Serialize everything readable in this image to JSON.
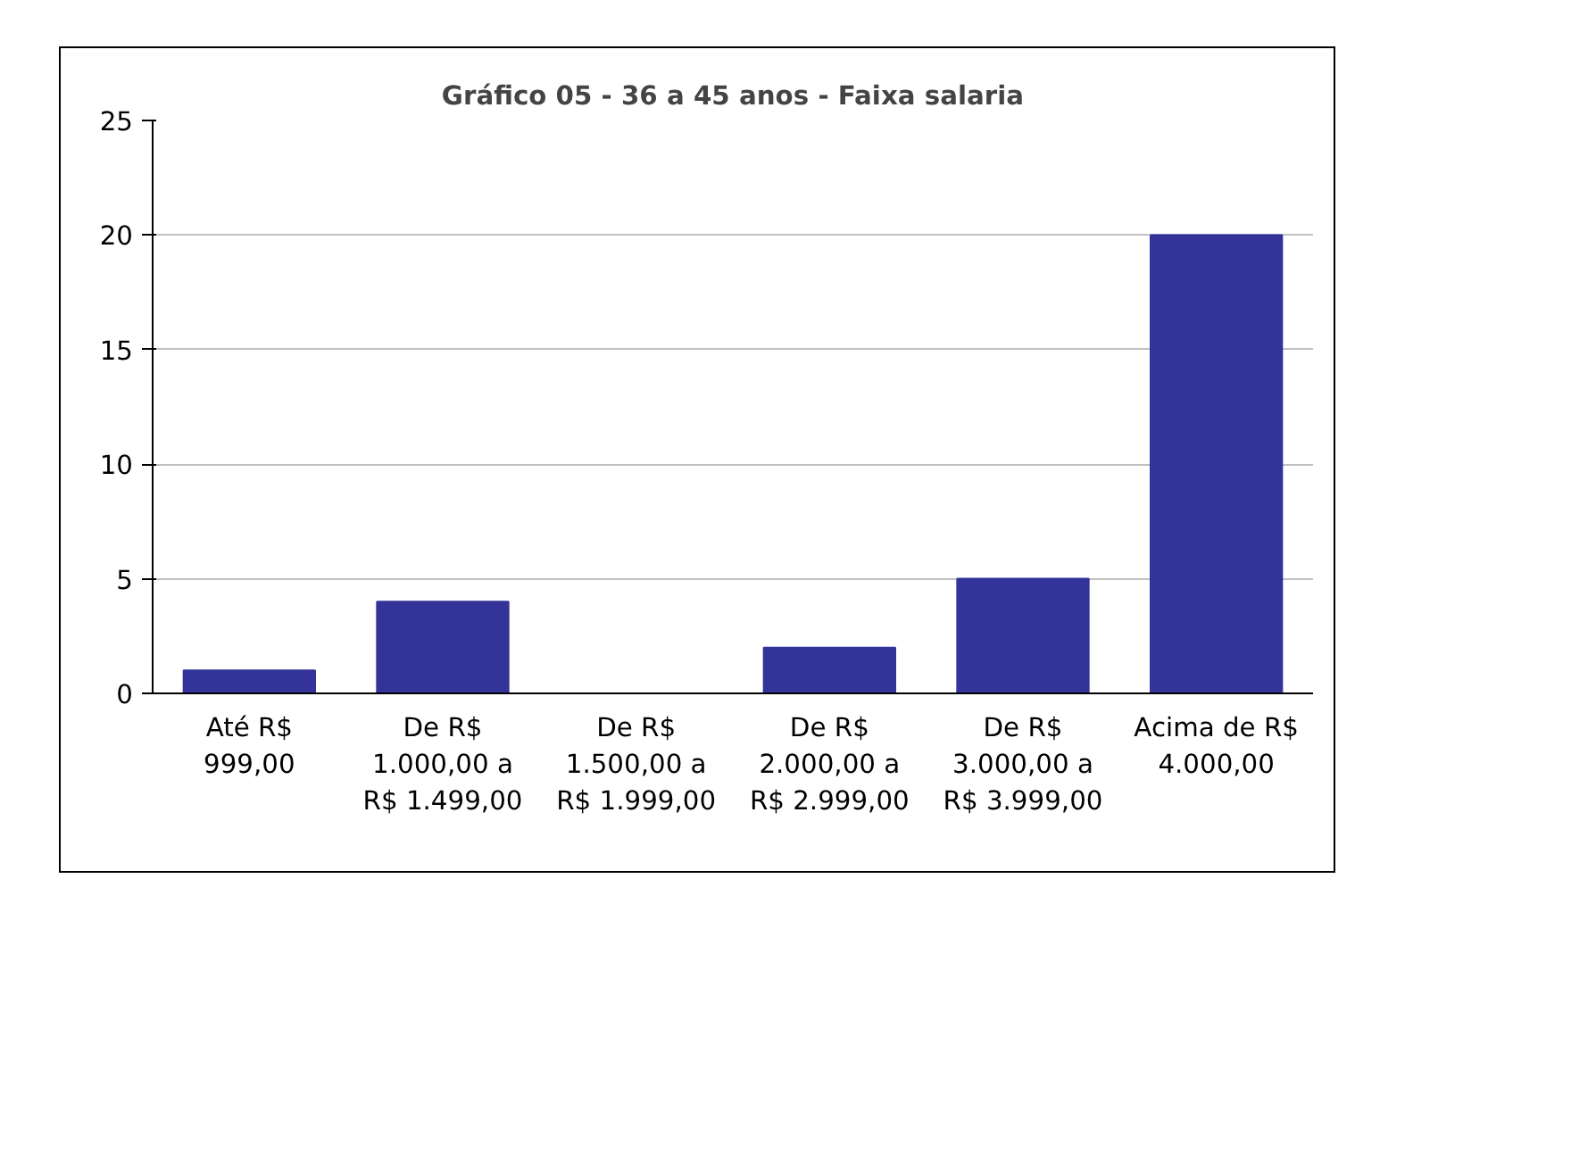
{
  "chart_data": {
    "type": "bar",
    "title": "Gráfico 05 - 36 a 45 anos - Faixa salaria",
    "categories": [
      "Até R$ 999,00",
      "De R$ 1.000,00 a R$ 1.499,00",
      "De R$ 1.500,00 a R$ 1.999,00",
      "De R$ 2.000,00 a R$ 2.999,00",
      "De R$ 3.000,00 a R$ 3.999,00",
      "Acima de R$ 4.000,00"
    ],
    "values": [
      1,
      4,
      0,
      2,
      5,
      20
    ],
    "color": "#333399",
    "ylim": [
      0,
      25
    ],
    "yticks": [
      0,
      5,
      10,
      15,
      20,
      25
    ],
    "grid": "y"
  }
}
